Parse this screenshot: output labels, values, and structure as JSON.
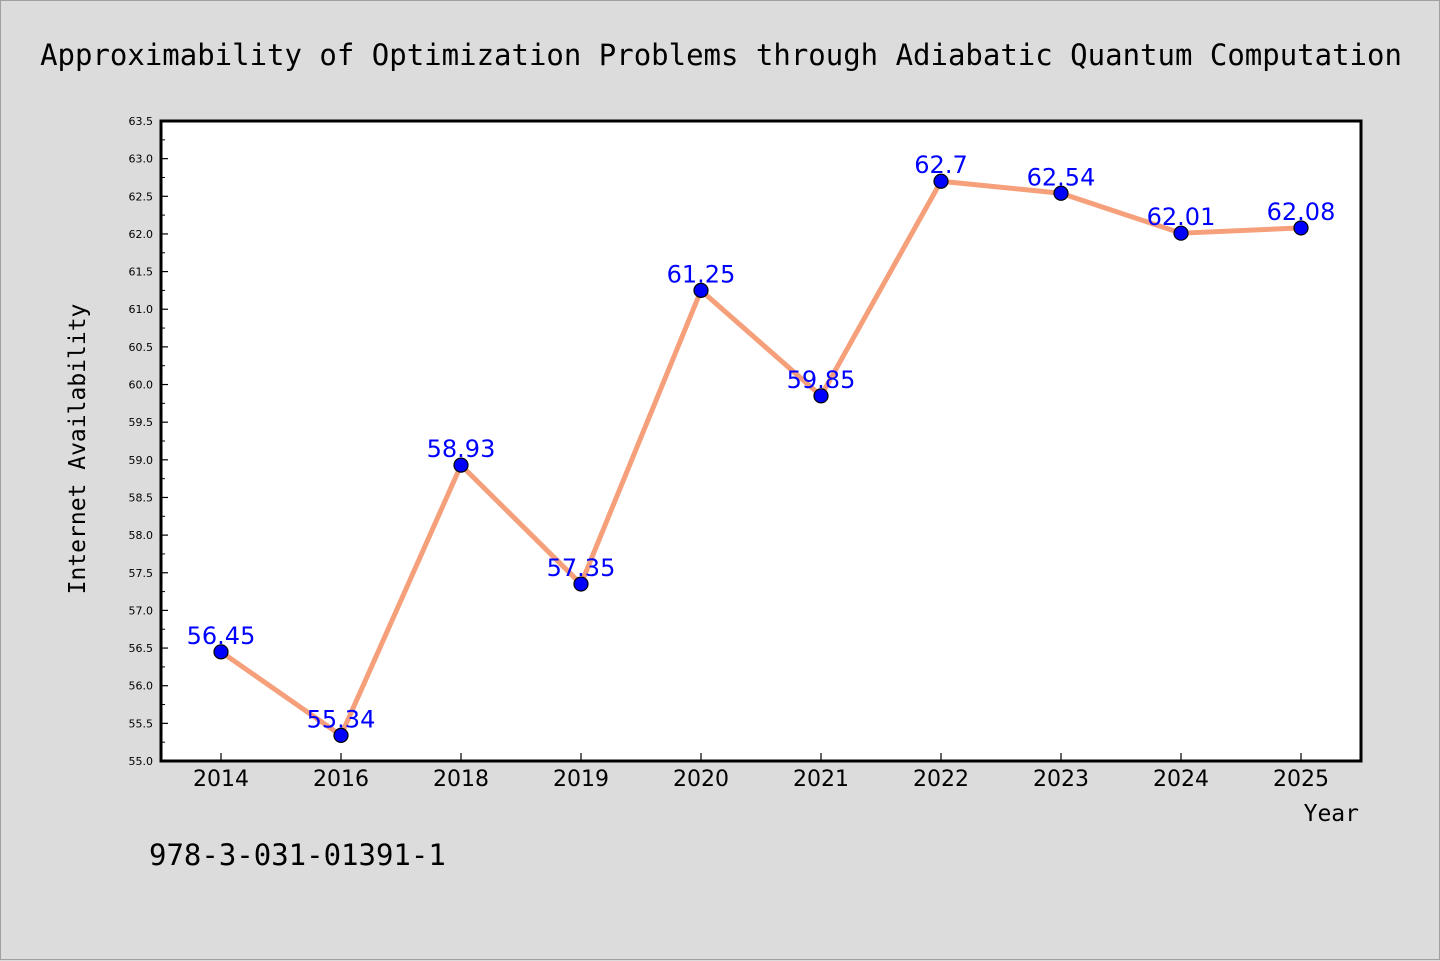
{
  "chart_data": {
    "type": "line",
    "title": "Approximability of Optimization Problems through Adiabatic Quantum Computation",
    "xlabel": "Year",
    "ylabel": "Internet Availability",
    "categories": [
      "2014",
      "2016",
      "2018",
      "2019",
      "2020",
      "2021",
      "2022",
      "2023",
      "2024",
      "2025"
    ],
    "series": [
      {
        "values": [
          56.45,
          55.34,
          58.93,
          57.35,
          61.25,
          59.85,
          62.7,
          62.54,
          62.01,
          62.08
        ]
      }
    ],
    "data_labels": [
      "56.45",
      "55.34",
      "58.93",
      "57.35",
      "61.25",
      "59.85",
      "62.7",
      "62.54",
      "62.01",
      "62.08"
    ],
    "ylim": [
      55.0,
      63.5
    ],
    "yticks": [
      "55.0",
      "55.5",
      "56.0",
      "56.5",
      "57.0",
      "57.5",
      "58.0",
      "58.5",
      "59.0",
      "59.5",
      "60.0",
      "60.5",
      "61.0",
      "61.5",
      "62.0",
      "62.5",
      "63.0",
      "63.5"
    ],
    "grid": false,
    "legend": "none",
    "colors": {
      "line": "#f5a07a",
      "marker": "#0000ff",
      "marker_edge": "#000000",
      "label": "#0000ff",
      "background": "#dcdcdc",
      "plot_background": "#ffffff"
    }
  },
  "footer": {
    "isbn": "978-3-031-01391-1"
  }
}
